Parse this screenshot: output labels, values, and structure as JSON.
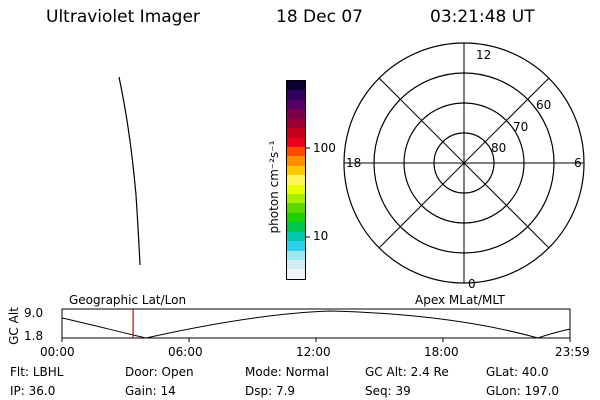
{
  "header": {
    "instrument": "Ultraviolet Imager",
    "date": "18 Dec 07",
    "time": "03:21:48 UT"
  },
  "colorbar": {
    "unit_label": "photon cm⁻²s⁻¹",
    "ticks": [
      "100",
      "10"
    ],
    "colors": [
      "#0b0030",
      "#31005c",
      "#560066",
      "#7a004e",
      "#9b0032",
      "#c2001a",
      "#e8001c",
      "#ff4a00",
      "#ff8f00",
      "#ffc800",
      "#fff55a",
      "#e6ff00",
      "#a8f000",
      "#5cd800",
      "#1fd000",
      "#00c84c",
      "#00c8aa",
      "#30d0e8",
      "#9ee8f0",
      "#d0eef2",
      "#f2f6f8"
    ]
  },
  "polar": {
    "mlt_labels": {
      "top": "12",
      "left": "18",
      "right": "6",
      "bottom": "0"
    },
    "lat_labels": [
      "60",
      "70",
      "80"
    ]
  },
  "altitude_plot": {
    "ylabel": "GC Alt",
    "ymax": "9.0",
    "ymin": "1.8",
    "left_title": "Geographic Lat/Lon",
    "right_title": "Apex MLat/MLT",
    "xticks": [
      "00:00",
      "06:00",
      "12:00",
      "18:00",
      "23:59"
    ],
    "current_time_hours": 3.36
  },
  "status": {
    "flt_label": "Flt:",
    "flt_value": "LBHL",
    "door_label": "Door:",
    "door_value": "Open",
    "mode_label": "Mode:",
    "mode_value": "Normal",
    "gcalt_label": "GC Alt:",
    "gcalt_value": "2.4 Re",
    "glat_label": "GLat:",
    "glat_value": "40.0",
    "ip_label": "IP:",
    "ip_value": "36.0",
    "gain_label": "Gain:",
    "gain_value": "14",
    "dsp_label": "Dsp:",
    "dsp_value": "7.9",
    "seq_label": "Seq:",
    "seq_value": "39",
    "glon_label": "GLon:",
    "glon_value": "197.0"
  }
}
